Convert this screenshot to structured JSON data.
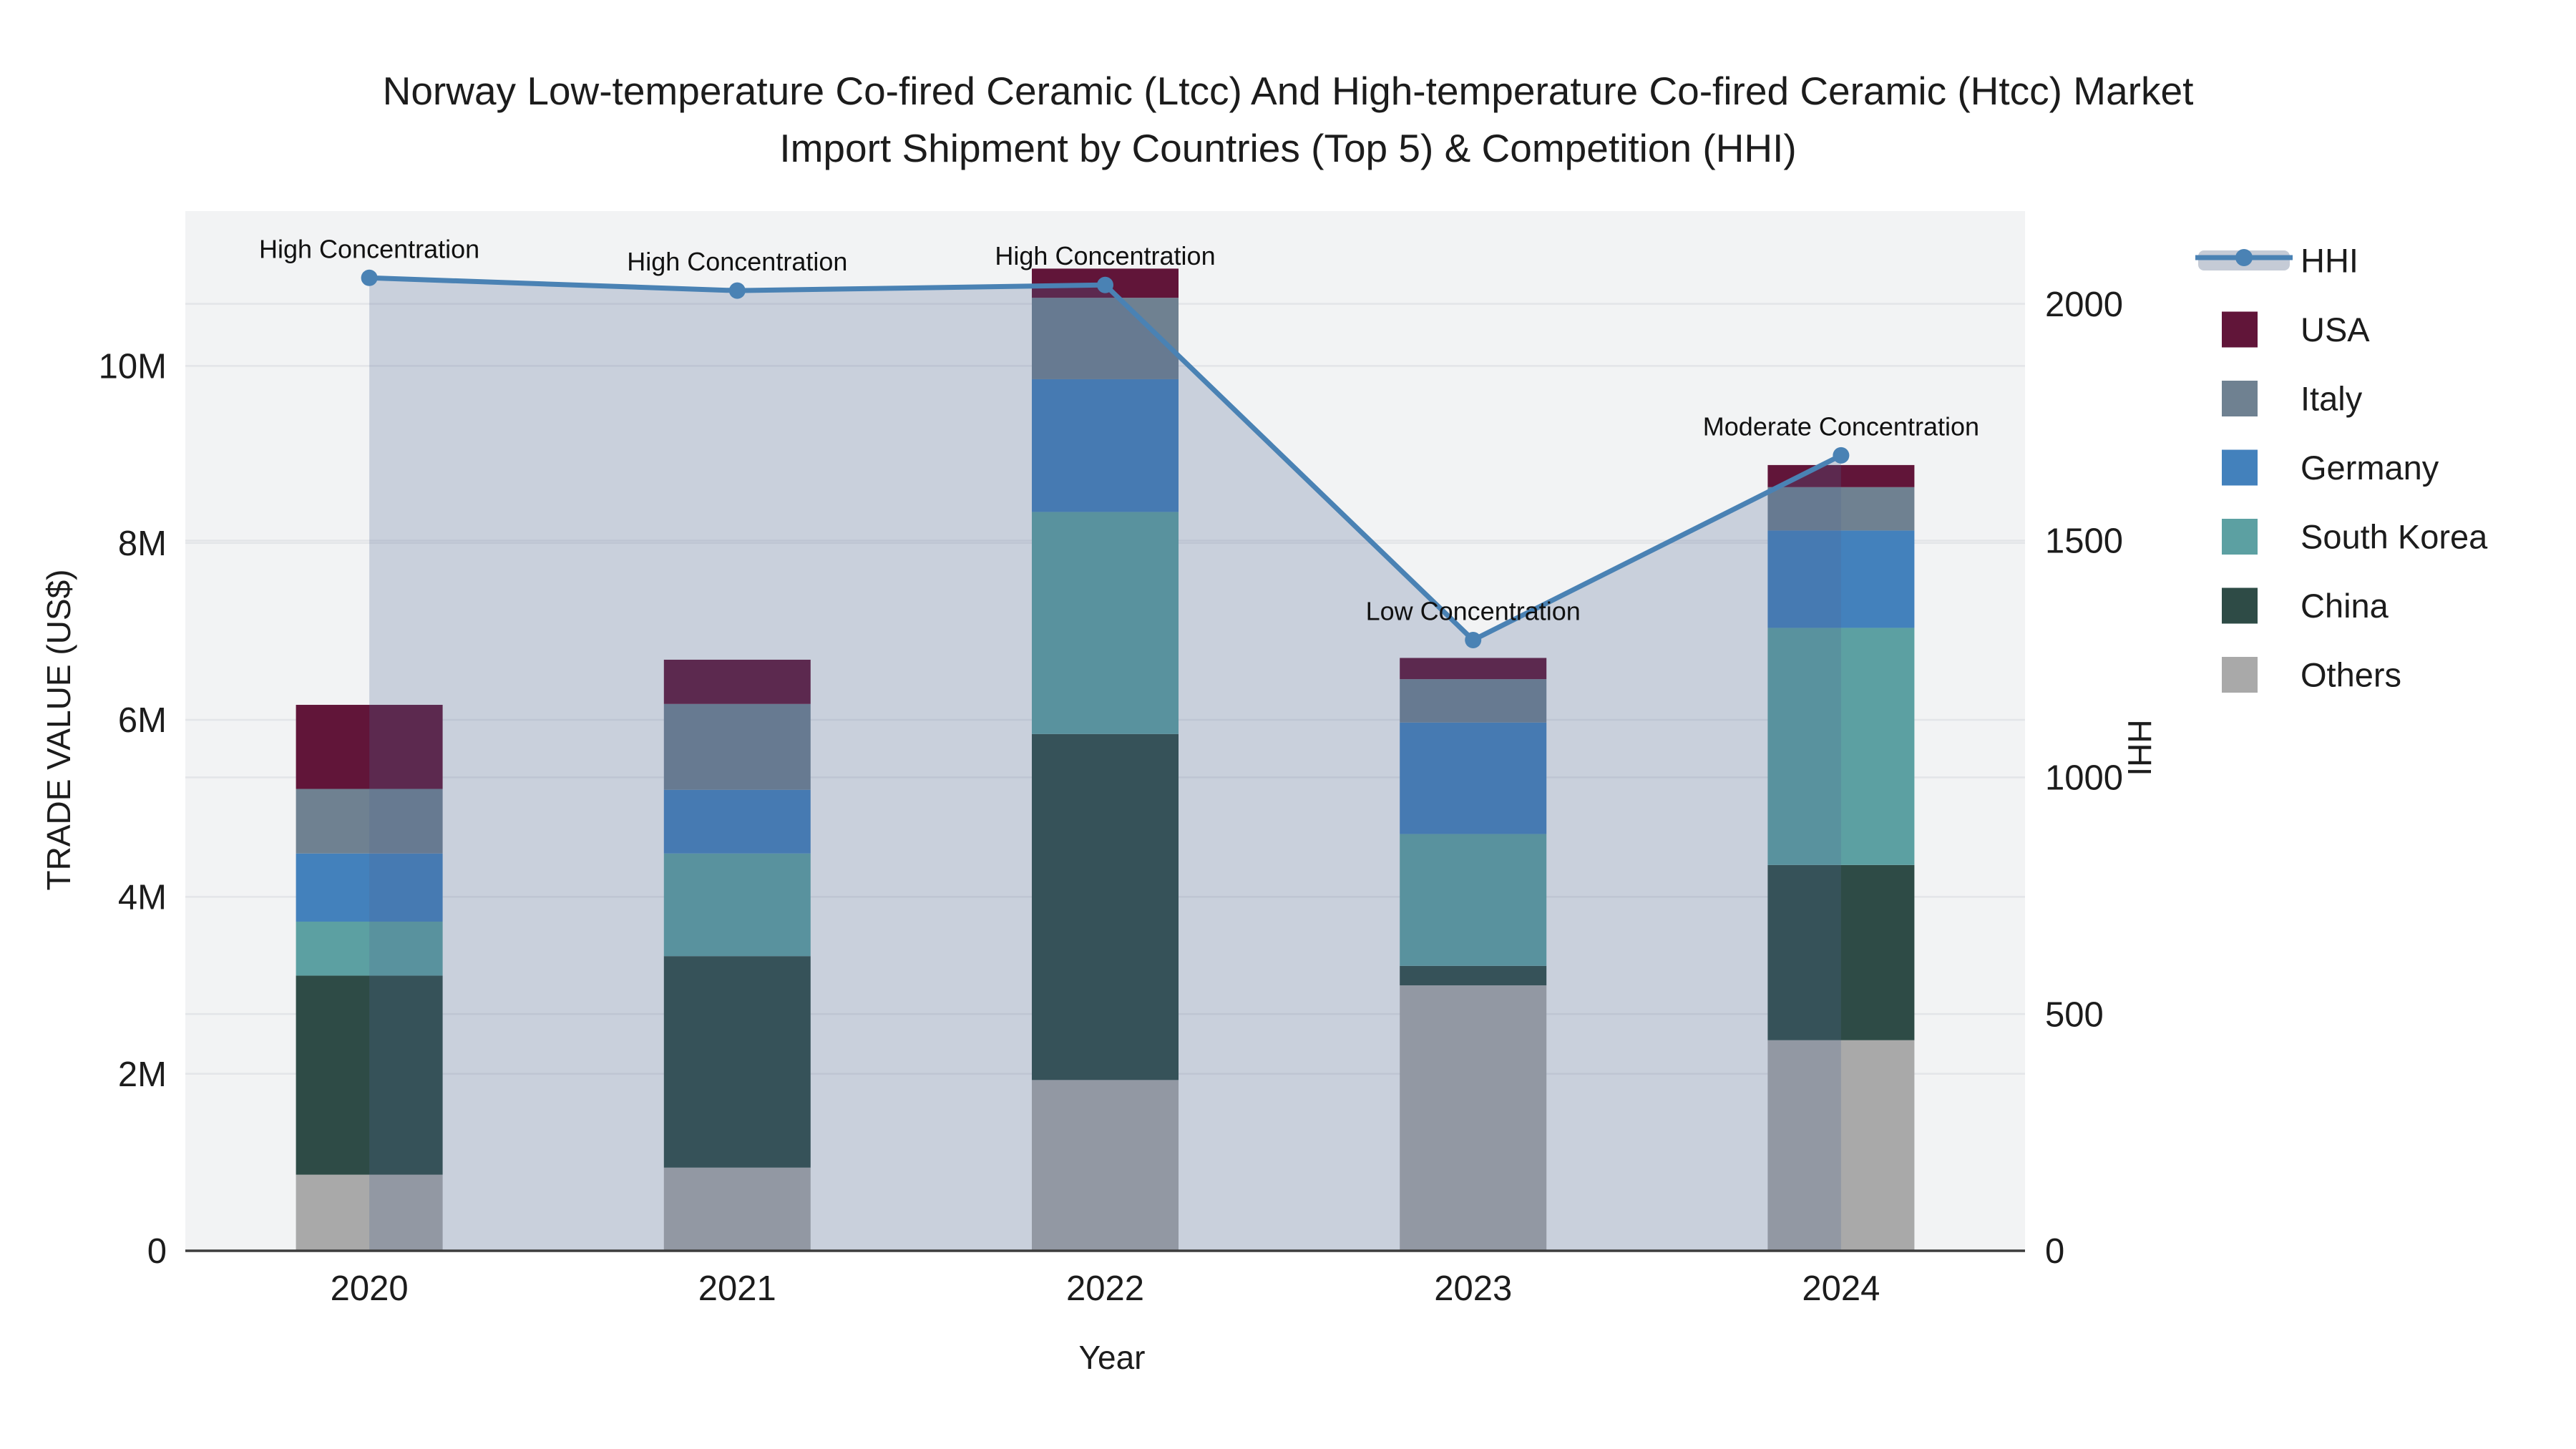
{
  "title_lines": [
    "Norway Low-temperature Co-fired Ceramic (Ltcc) And High-temperature Co-fired Ceramic (Htcc) Market",
    "Import Shipment by Countries (Top 5) & Competition (HHI)"
  ],
  "axes": {
    "x": {
      "title": "Year",
      "categories": [
        "2020",
        "2021",
        "2022",
        "2023",
        "2024"
      ]
    },
    "y_left": {
      "title": "TRADE VALUE (US$)",
      "tick_labels": [
        "0",
        "2M",
        "4M",
        "6M",
        "8M",
        "10M"
      ],
      "tick_values": [
        0,
        2,
        4,
        6,
        8,
        10
      ],
      "range": [
        0,
        11.75
      ]
    },
    "y_right": {
      "title": "HHI",
      "tick_labels": [
        "0",
        "500",
        "1000",
        "1500",
        "2000"
      ],
      "tick_values": [
        0,
        500,
        1000,
        1500,
        2000
      ],
      "range": [
        0,
        2196
      ]
    }
  },
  "chart_data": {
    "type": "bar+line",
    "title": "Norway Low-temperature Co-fired Ceramic (Ltcc) And High-temperature Co-fired Ceramic (Htcc) Market Import Shipment by Countries (Top 5) & Competition (HHI)",
    "xlabel": "Year",
    "ylabel_left": "TRADE VALUE (US$)",
    "ylabel_right": "HHI",
    "categories": [
      "2020",
      "2021",
      "2022",
      "2023",
      "2024"
    ],
    "stack_units": "millions US$",
    "series": [
      {
        "name": "Others",
        "color": "#A9A9A9",
        "values": [
          0.86,
          0.94,
          1.93,
          3.0,
          2.38
        ]
      },
      {
        "name": "China",
        "color": "#2E4B46",
        "values": [
          2.25,
          2.39,
          3.91,
          0.22,
          1.98
        ]
      },
      {
        "name": "South Korea",
        "color": "#5CA0A2",
        "values": [
          0.61,
          1.16,
          2.51,
          1.49,
          2.68
        ]
      },
      {
        "name": "Germany",
        "color": "#4381BC",
        "values": [
          0.77,
          0.72,
          1.5,
          1.26,
          1.1
        ]
      },
      {
        "name": "Italy",
        "color": "#6F8191",
        "values": [
          0.73,
          0.97,
          0.92,
          0.49,
          0.49
        ]
      },
      {
        "name": "USA",
        "color": "#611539",
        "values": [
          0.95,
          0.5,
          0.33,
          0.24,
          0.25
        ]
      }
    ],
    "line": {
      "name": "HHI",
      "color": "#4A82B4",
      "fill_color": "rgba(78,102,146,0.25)",
      "values": [
        2055,
        2028,
        2040,
        1290,
        1680
      ]
    },
    "annotations": [
      {
        "x": "2020",
        "text": "High Concentration"
      },
      {
        "x": "2021",
        "text": "High Concentration"
      },
      {
        "x": "2022",
        "text": "High Concentration"
      },
      {
        "x": "2023",
        "text": "Low Concentration"
      },
      {
        "x": "2024",
        "text": "Moderate Concentration"
      }
    ],
    "legend_position": "right",
    "grid": true
  },
  "legend": {
    "items": [
      {
        "label": "HHI",
        "type": "line",
        "color": "#4A82B4",
        "band_color": "#C5CBD6"
      },
      {
        "label": "USA",
        "type": "swatch",
        "color": "#611539"
      },
      {
        "label": "Italy",
        "type": "swatch",
        "color": "#6F8191"
      },
      {
        "label": "Germany",
        "type": "swatch",
        "color": "#4381BC"
      },
      {
        "label": "South Korea",
        "type": "swatch",
        "color": "#5CA0A2"
      },
      {
        "label": "China",
        "type": "swatch",
        "color": "#2E4B46"
      },
      {
        "label": "Others",
        "type": "swatch",
        "color": "#A9A9A9"
      }
    ]
  },
  "colors": {
    "plot_background": "#F2F3F4",
    "gridline": "#E3E5E8",
    "axis_line": "#3D3D3D",
    "text": "#1c1c1c",
    "annotation_text": "#111111"
  }
}
